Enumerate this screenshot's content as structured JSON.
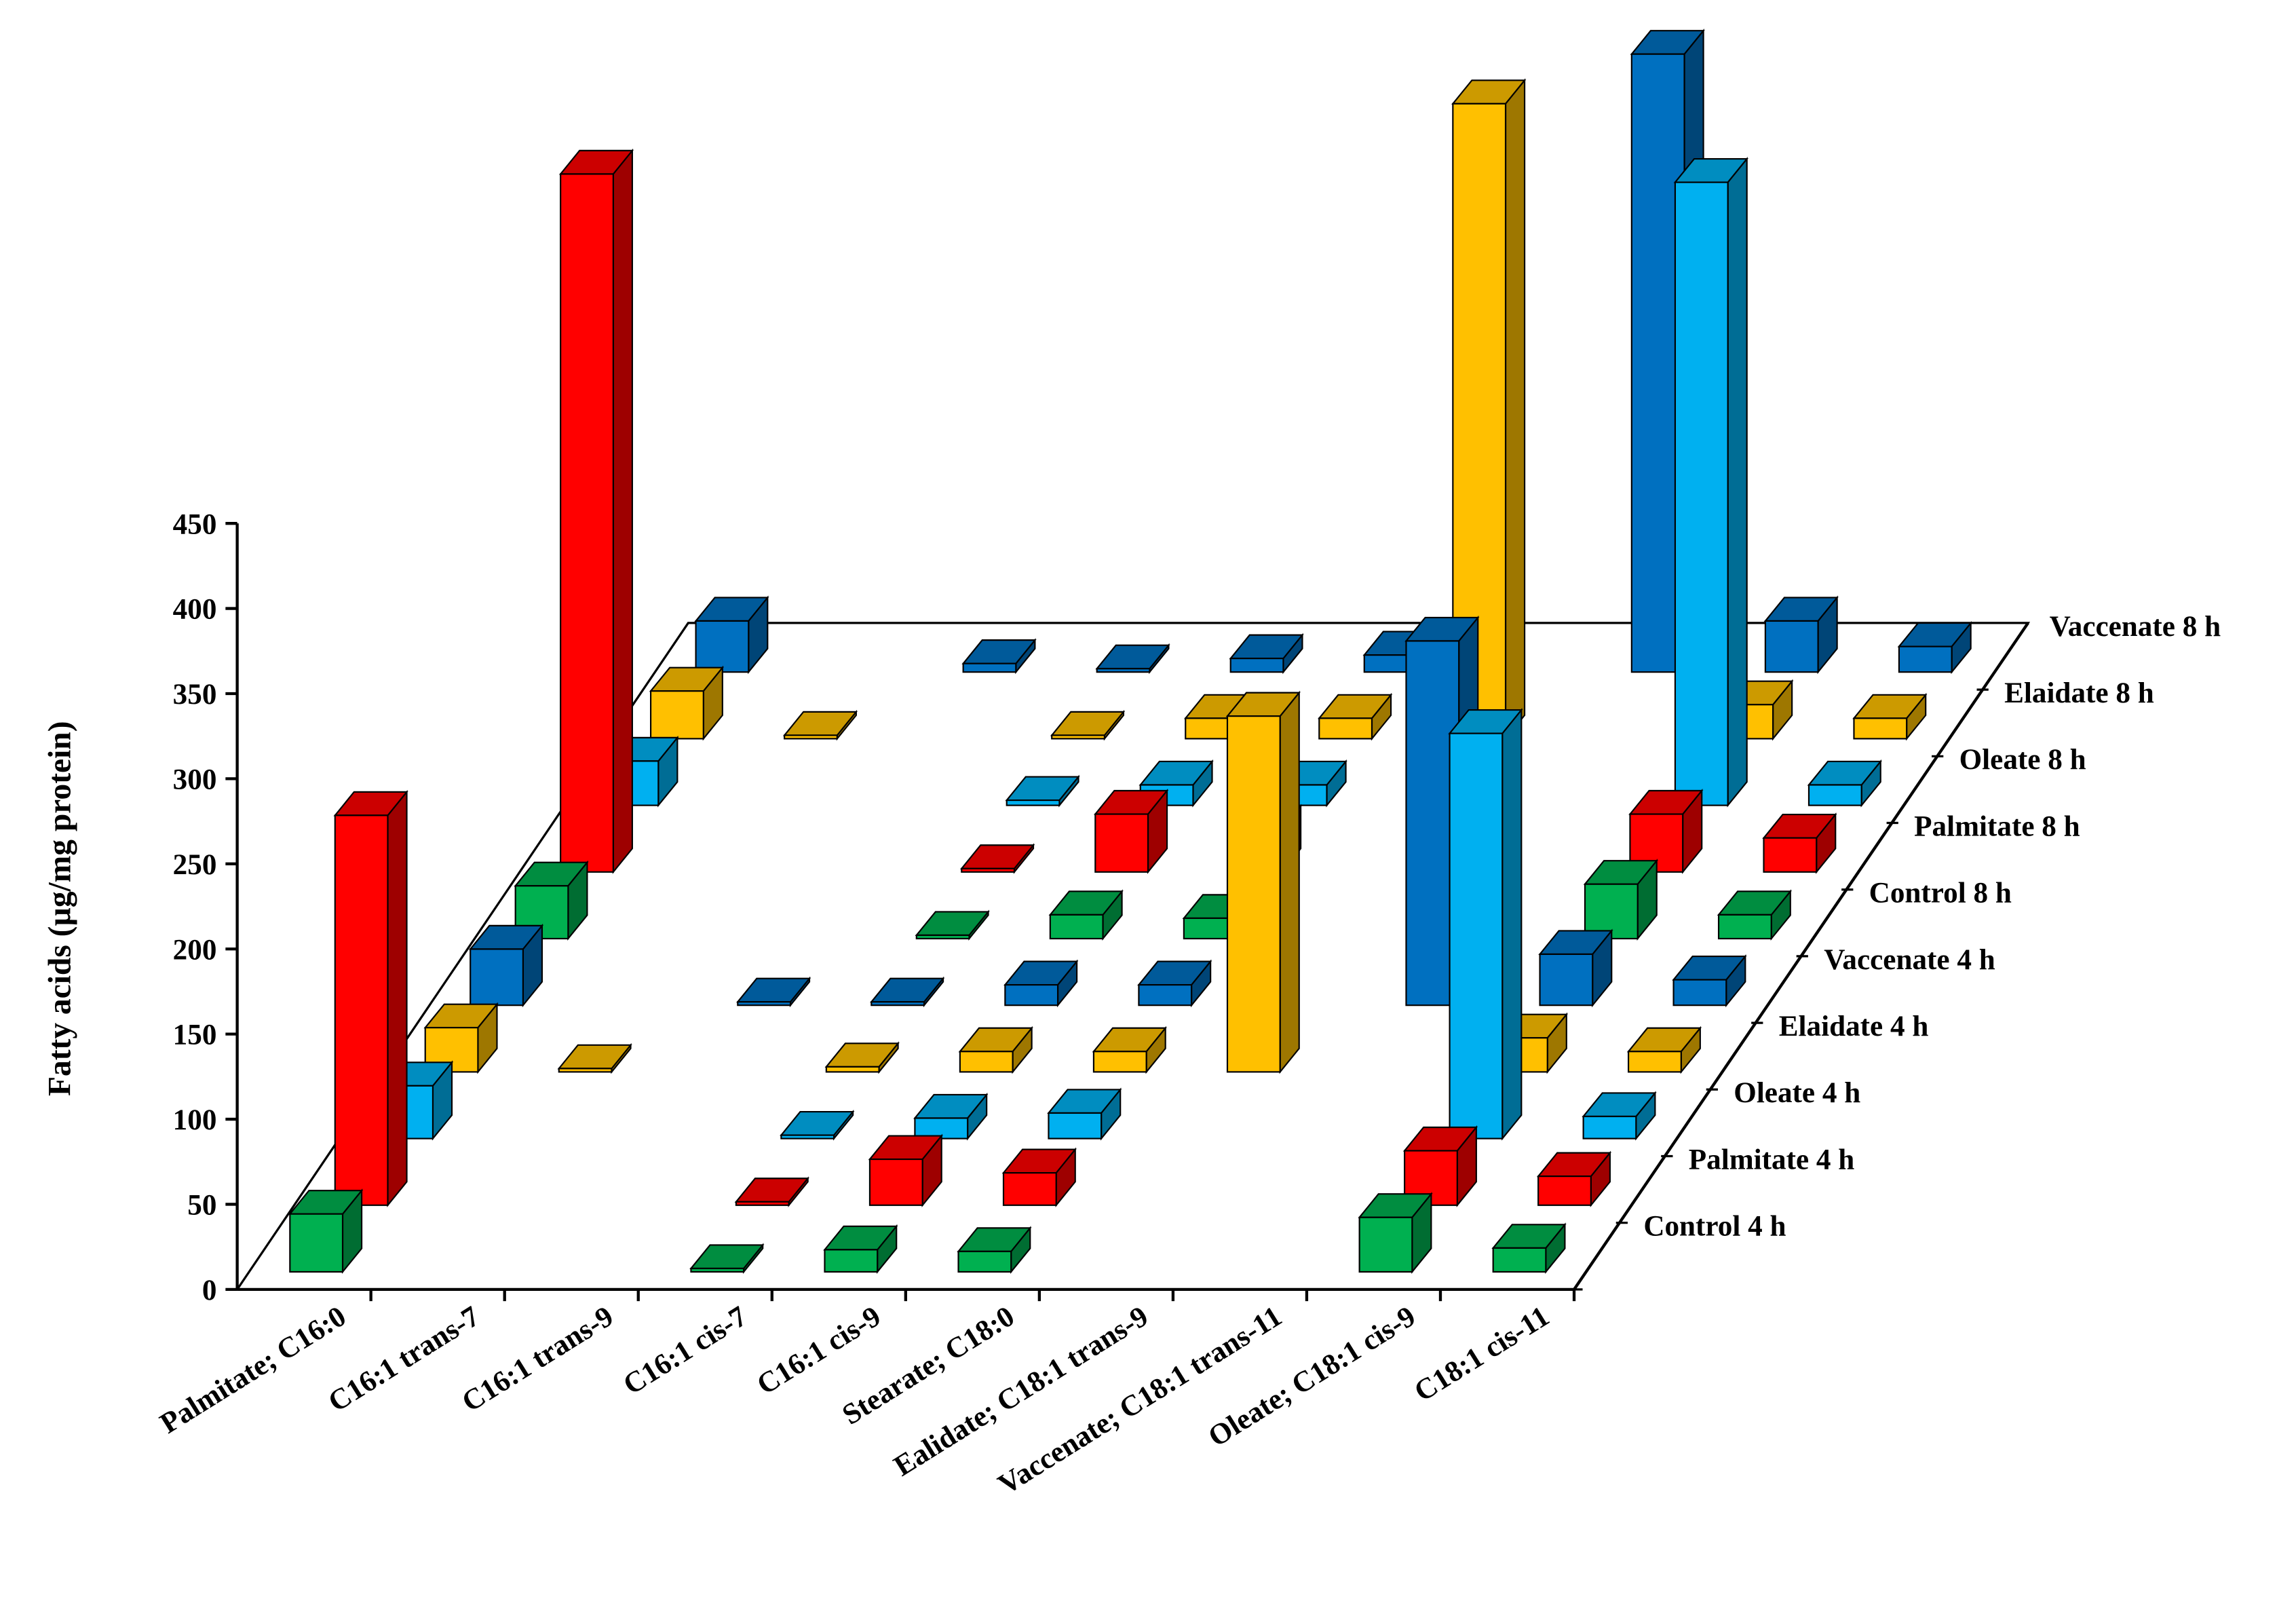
{
  "chart_data": {
    "type": "bar3d",
    "y_label": "Fatty acids (µg/mg protein)",
    "categories": [
      "Palmitate; C16:0",
      "C16:1 trans-7",
      "C16:1 trans-9",
      "C16:1 cis-7",
      "C16:1 cis-9",
      "Stearate; C18:0",
      "Ealidate; C18:1 trans-9",
      "Vaccenate; C18:1 trans-11",
      "Oleate; C18:1 cis-9",
      "C18:1 cis-11"
    ],
    "series": [
      {
        "name": "Control 4 h",
        "color": "#00b050",
        "values": [
          34,
          null,
          null,
          2,
          13,
          12,
          null,
          null,
          32,
          14
        ]
      },
      {
        "name": "Palmitate 4 h",
        "color": "#ff0000",
        "values": [
          229,
          null,
          null,
          2,
          27,
          19,
          null,
          null,
          32,
          17
        ]
      },
      {
        "name": "Oleate 4 h",
        "color": "#00b0f0",
        "values": [
          31,
          null,
          null,
          2,
          12,
          15,
          null,
          null,
          238,
          13
        ]
      },
      {
        "name": "Elaidate 4 h",
        "color": "#ffc000",
        "values": [
          26,
          2,
          null,
          3,
          12,
          12,
          209,
          null,
          20,
          12
        ]
      },
      {
        "name": "Vaccenate 4 h",
        "color": "#0070c0",
        "values": [
          33,
          null,
          2,
          2,
          12,
          12,
          null,
          214,
          30,
          15
        ]
      },
      {
        "name": "Control 8 h",
        "color": "#00b050",
        "values": [
          31,
          null,
          null,
          2,
          14,
          12,
          null,
          null,
          32,
          14
        ]
      },
      {
        "name": "Palmitate 8 h",
        "color": "#ff0000",
        "values": [
          410,
          null,
          null,
          2,
          34,
          25,
          null,
          null,
          34,
          20
        ]
      },
      {
        "name": "Oleate 8 h",
        "color": "#00b0f0",
        "values": [
          26,
          null,
          null,
          3,
          12,
          12,
          null,
          null,
          366,
          12
        ]
      },
      {
        "name": "Elaidate 8 h",
        "color": "#ffc000",
        "values": [
          28,
          2,
          null,
          2,
          12,
          12,
          373,
          null,
          20,
          12
        ]
      },
      {
        "name": "Vaccenate 8 h",
        "color": "#0070c0",
        "values": [
          30,
          null,
          5,
          2,
          8,
          10,
          null,
          363,
          30,
          15
        ]
      }
    ],
    "ylim": [
      0,
      450
    ],
    "yticks": [
      0,
      50,
      100,
      150,
      200,
      250,
      300,
      350,
      400,
      450
    ]
  }
}
